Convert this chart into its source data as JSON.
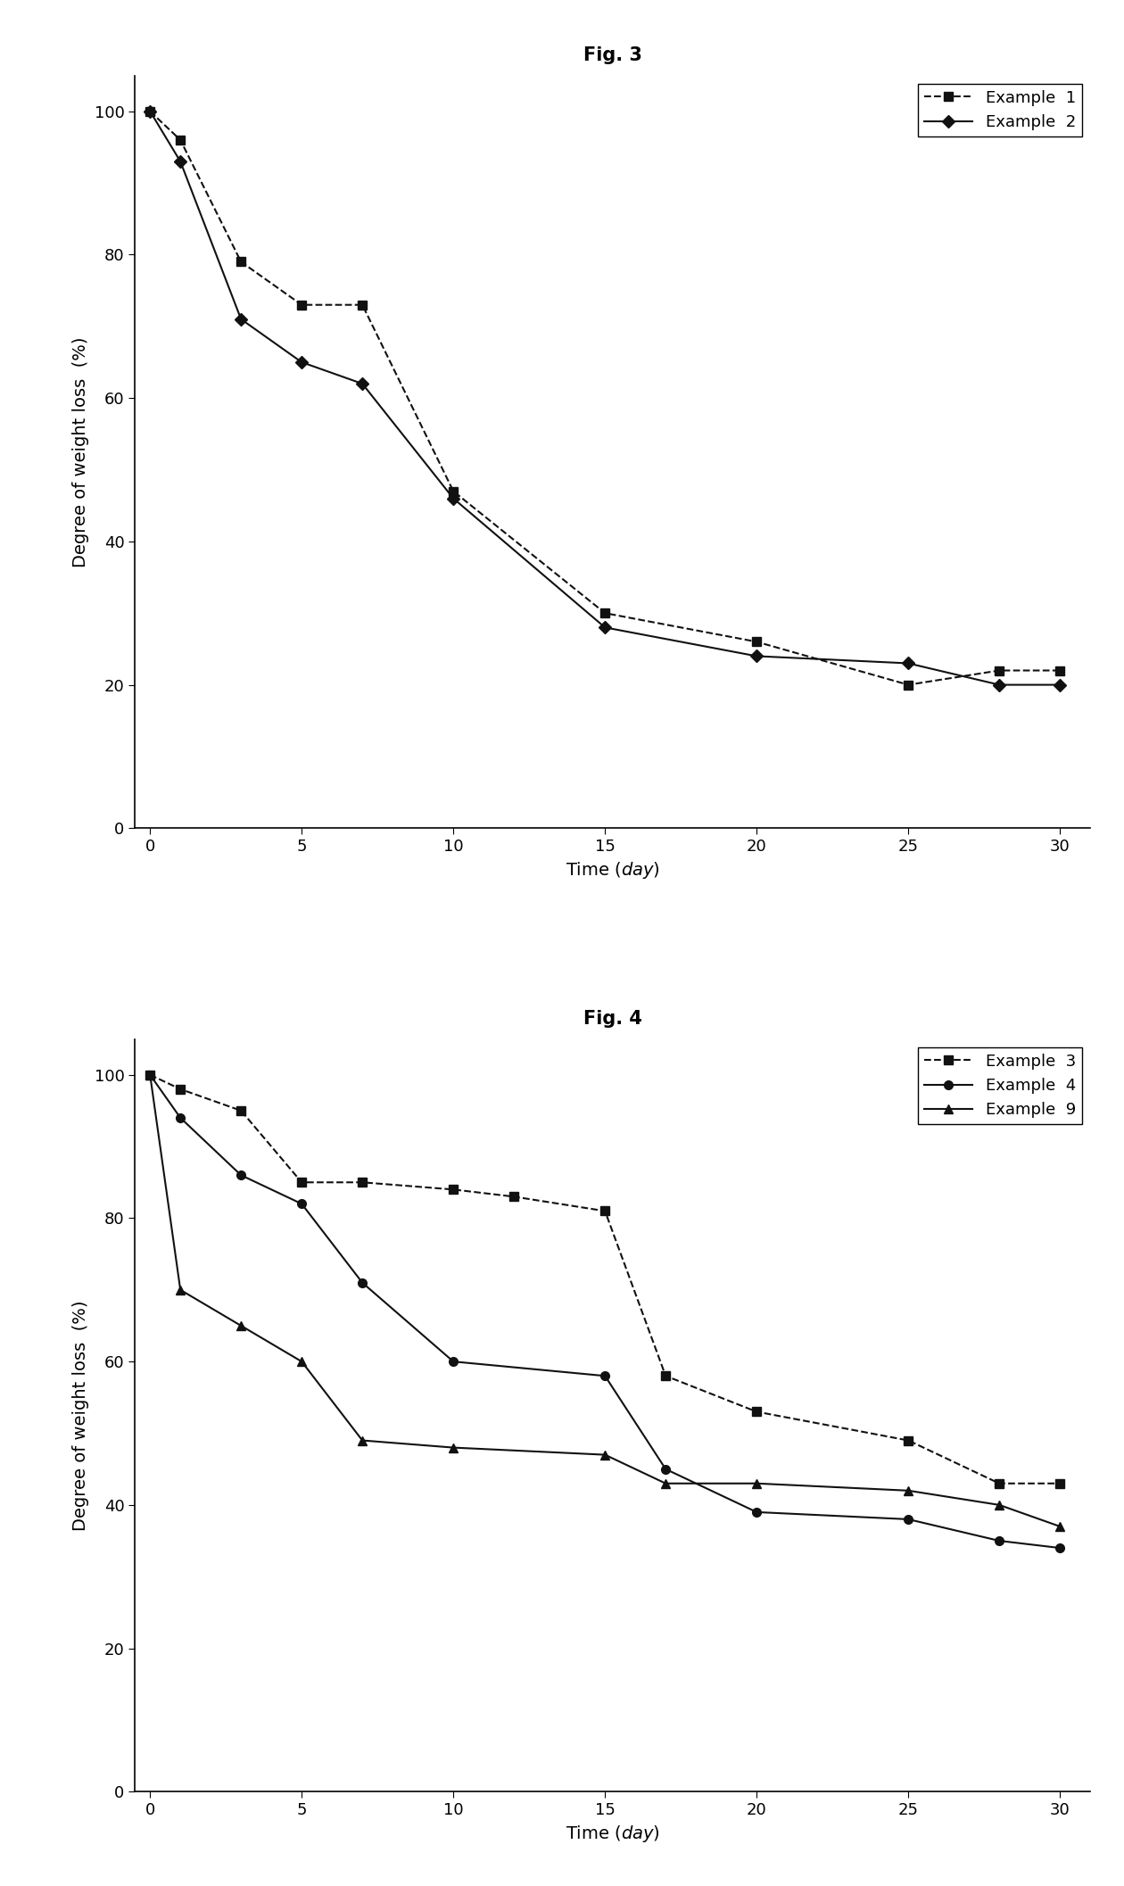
{
  "fig3_title": "Fig. 3",
  "fig4_title": "Fig. 4",
  "xlabel_main": "Time",
  "xlabel_unit": " (day)",
  "ylabel": "Degree of weight loss  (%)",
  "fig3": {
    "example1": {
      "label": "Example  1",
      "x": [
        0,
        1,
        3,
        5,
        7,
        10,
        15,
        20,
        25,
        28,
        30
      ],
      "y": [
        100,
        96,
        79,
        73,
        73,
        47,
        30,
        26,
        20,
        22,
        22
      ],
      "marker": "s",
      "color": "#111111",
      "linestyle": "--"
    },
    "example2": {
      "label": "Example  2",
      "x": [
        0,
        1,
        3,
        5,
        7,
        10,
        15,
        20,
        25,
        28,
        30
      ],
      "y": [
        100,
        93,
        71,
        65,
        62,
        46,
        28,
        24,
        23,
        20,
        20
      ],
      "marker": "D",
      "color": "#111111",
      "linestyle": "-"
    }
  },
  "fig4": {
    "example3": {
      "label": "Example  3",
      "x": [
        0,
        1,
        3,
        5,
        7,
        10,
        12,
        15,
        17,
        20,
        25,
        28,
        30
      ],
      "y": [
        100,
        98,
        95,
        85,
        85,
        84,
        83,
        81,
        58,
        53,
        49,
        43,
        43
      ],
      "marker": "s",
      "color": "#111111",
      "linestyle": "--"
    },
    "example4": {
      "label": "Example  4",
      "x": [
        0,
        1,
        3,
        5,
        7,
        10,
        15,
        17,
        20,
        25,
        28,
        30
      ],
      "y": [
        100,
        94,
        86,
        82,
        71,
        60,
        58,
        45,
        39,
        38,
        35,
        34
      ],
      "marker": "o",
      "color": "#111111",
      "linestyle": "-"
    },
    "example9": {
      "label": "Example  9",
      "x": [
        0,
        1,
        3,
        5,
        7,
        10,
        15,
        17,
        20,
        25,
        28,
        30
      ],
      "y": [
        100,
        70,
        65,
        60,
        49,
        48,
        47,
        43,
        43,
        42,
        40,
        37
      ],
      "marker": "^",
      "color": "#111111",
      "linestyle": "-"
    }
  },
  "xlim": [
    -0.5,
    31
  ],
  "ylim": [
    0,
    105
  ],
  "xticks": [
    0,
    5,
    10,
    15,
    20,
    25,
    30
  ],
  "yticks": [
    0,
    20,
    40,
    60,
    80,
    100
  ],
  "background_color": "#ffffff",
  "markersize": 7,
  "linewidth": 1.5,
  "title_fontsize": 15,
  "label_fontsize": 14,
  "tick_fontsize": 13,
  "legend_fontsize": 13
}
